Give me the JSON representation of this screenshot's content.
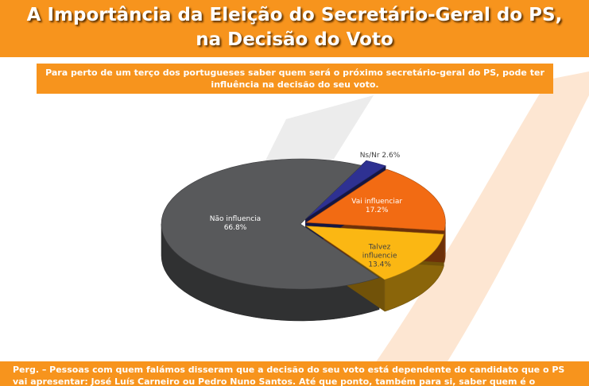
{
  "header": {
    "title_line1": "A Importância da Eleição do Secretário-Geral do PS,",
    "title_line2": "na Decisão do Voto",
    "subtitle": "Para perto de um terço dos portugueses saber quem será o próximo secretário-geral do PS, pode ter influência na decisão do seu voto."
  },
  "footer": {
    "text": "Perg. – Pessoas com quem falámos disseram que a decisão do seu voto está dependente do candidato que o PS vai apresentar: José Luís Carneiro ou Pedro Nuno Santos. Até que ponto, também para si, saber quem é o"
  },
  "chart_data": {
    "type": "pie",
    "style": "3d",
    "slices": [
      {
        "label": "Não influencia",
        "value": 66.8,
        "display": "66.8%",
        "color": "#58595b"
      },
      {
        "label": "Ns/Nr",
        "value": 2.6,
        "display": "2.6%",
        "color": "#2e3192"
      },
      {
        "label": "Vai influenciar",
        "value": 17.2,
        "display": "17.2%",
        "color": "#f26b13"
      },
      {
        "label": "Talvez influencie",
        "value": 13.4,
        "display": "13.4%",
        "color": "#fbb713"
      }
    ]
  },
  "colors": {
    "accent": "#f7941d",
    "background": "#ffffff"
  }
}
